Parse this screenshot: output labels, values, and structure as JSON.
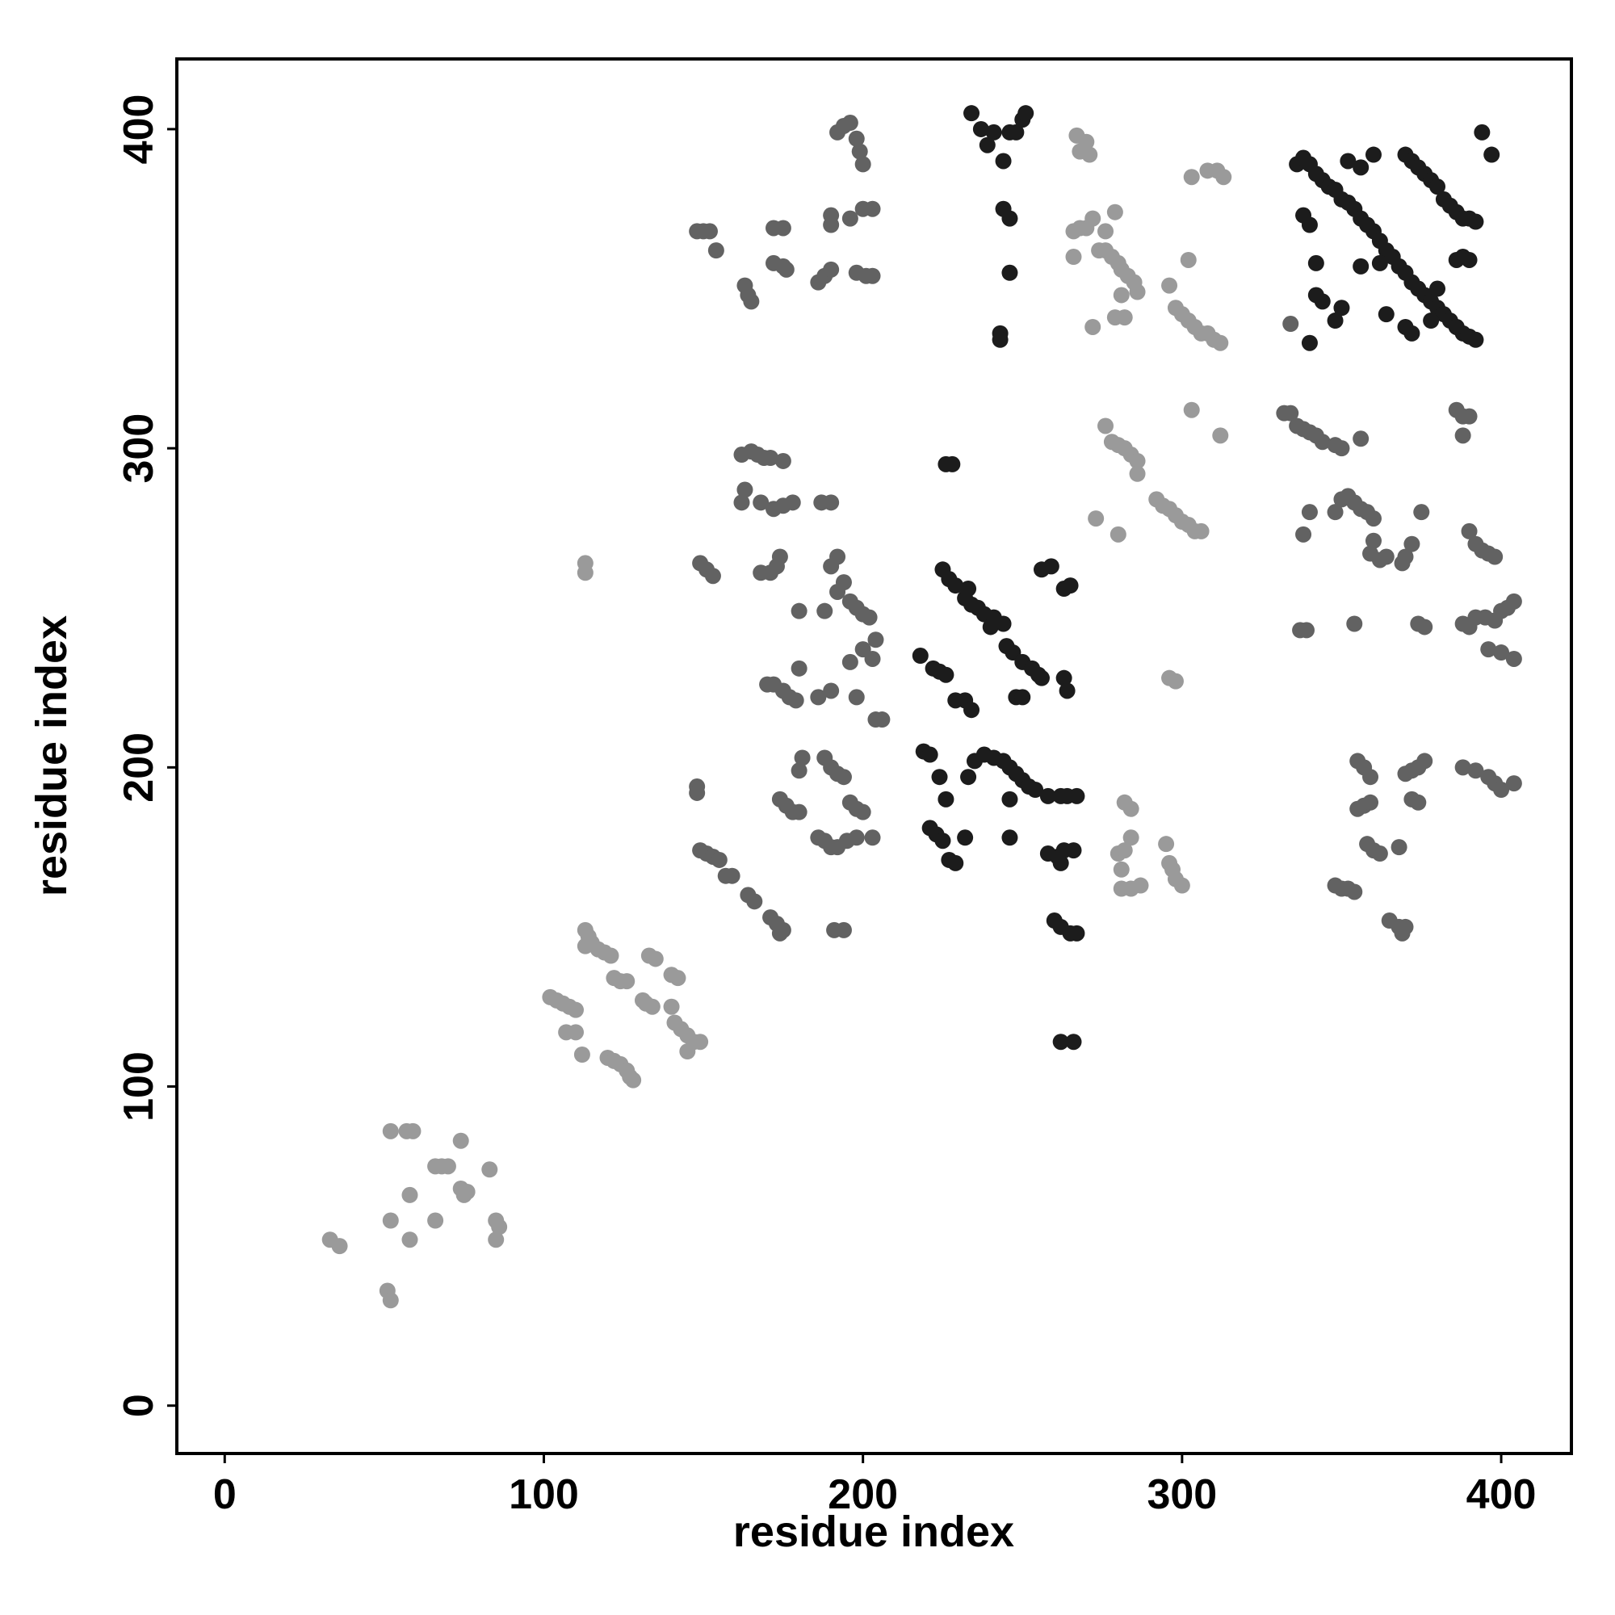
{
  "chart_data": {
    "type": "scatter",
    "x_label": "residue index",
    "y_label": "residue index",
    "xlim": [
      -15,
      422
    ],
    "ylim": [
      -15,
      422
    ],
    "xticks": [
      0,
      100,
      200,
      300,
      400
    ],
    "yticks": [
      0,
      100,
      200,
      300,
      400
    ],
    "grid": false,
    "series": [
      {
        "color": "#9a9a9a",
        "x": [
          33,
          36,
          51,
          52,
          52,
          57,
          59,
          52,
          58,
          58,
          66,
          66,
          68,
          70,
          74,
          74,
          75,
          76,
          83,
          85,
          86,
          85,
          102,
          104,
          106,
          108,
          110,
          107,
          110,
          112,
          113,
          114,
          115,
          117,
          119,
          113,
          120,
          122,
          124,
          126,
          127,
          128,
          122,
          124,
          126,
          121,
          133,
          135,
          131,
          132,
          134,
          140,
          142,
          140,
          141,
          143,
          145,
          147,
          149,
          145,
          113,
          113,
          267,
          268,
          270,
          271,
          266,
          268,
          270,
          272,
          266,
          274,
          276,
          278,
          280,
          281,
          283,
          285,
          286,
          276,
          279,
          272,
          279,
          282,
          281,
          273,
          276,
          278,
          280,
          282,
          284,
          286,
          280,
          286,
          282,
          284,
          280,
          282,
          284,
          281,
          281,
          284,
          287,
          295,
          296,
          297,
          298,
          300,
          292,
          294,
          296,
          298,
          300,
          302,
          304,
          306,
          296,
          298,
          303,
          312,
          303,
          308,
          311,
          313,
          296,
          298,
          300,
          302,
          304,
          306,
          308,
          310,
          312,
          302
        ],
        "y": [
          52,
          50,
          36,
          33,
          86,
          86,
          86,
          58,
          52,
          66,
          58,
          75,
          75,
          75,
          83,
          68,
          66,
          67,
          74,
          58,
          56,
          52,
          128,
          127,
          126,
          125,
          124,
          117,
          117,
          110,
          149,
          147,
          145,
          143,
          142,
          144,
          109,
          108,
          107,
          105,
          103,
          102,
          134,
          133,
          133,
          141,
          141,
          140,
          127,
          126,
          125,
          135,
          134,
          125,
          120,
          118,
          116,
          114,
          114,
          111,
          264,
          261,
          398,
          393,
          396,
          392,
          368,
          369,
          369,
          372,
          360,
          362,
          362,
          360,
          358,
          356,
          354,
          352,
          349,
          368,
          374,
          338,
          341,
          341,
          348,
          278,
          307,
          302,
          301,
          300,
          298,
          296,
          273,
          292,
          189,
          187,
          173,
          174,
          178,
          168,
          162,
          162,
          163,
          176,
          170,
          168,
          165,
          163,
          284,
          282,
          281,
          279,
          277,
          276,
          274,
          274,
          228,
          227,
          312,
          304,
          385,
          387,
          387,
          385,
          351,
          344,
          342,
          340,
          338,
          336,
          336,
          334,
          333,
          359
        ]
      },
      {
        "color": "#626262",
        "x": [
          148,
          148,
          149,
          151,
          153,
          155,
          157,
          159,
          164,
          166,
          171,
          173,
          175,
          174,
          149,
          151,
          153,
          148,
          150,
          152,
          154,
          163,
          164,
          165,
          172,
          175,
          172,
          176,
          175,
          162,
          165,
          167,
          169,
          171,
          175,
          162,
          163,
          168,
          172,
          175,
          178,
          168,
          171,
          173,
          174,
          170,
          172,
          175,
          177,
          179,
          180,
          180,
          174,
          176,
          178,
          180,
          180,
          181,
          186,
          188,
          190,
          192,
          188,
          190,
          192,
          194,
          186,
          190,
          188,
          192,
          194,
          196,
          198,
          200,
          202,
          196,
          198,
          190,
          192,
          190,
          187,
          186,
          188,
          190,
          190,
          190,
          192,
          194,
          196,
          198,
          199,
          200,
          196,
          200,
          203,
          198,
          201,
          203,
          200,
          203,
          204,
          204,
          206,
          196,
          198,
          200,
          198,
          203,
          195,
          191,
          194,
          332,
          334,
          336,
          338,
          340,
          342,
          344,
          348,
          350,
          356,
          334,
          337,
          339,
          338,
          340,
          348,
          350,
          352,
          354,
          356,
          358,
          360,
          360,
          359,
          362,
          364,
          354,
          348,
          350,
          352,
          354,
          355,
          357,
          359,
          355,
          357,
          359,
          358,
          360,
          362,
          365,
          368,
          370,
          369,
          368,
          370,
          372,
          374,
          376,
          372,
          374,
          369,
          370,
          372,
          375,
          374,
          376,
          386,
          388,
          390,
          388,
          390,
          392,
          394,
          396,
          398,
          388,
          390,
          392,
          395,
          398,
          400,
          402,
          404,
          396,
          400,
          404,
          388,
          392,
          396,
          398,
          400,
          404
        ],
        "y": [
          194,
          192,
          174,
          173,
          172,
          171,
          166,
          166,
          160,
          158,
          153,
          151,
          149,
          148,
          264,
          262,
          260,
          368,
          368,
          368,
          362,
          351,
          348,
          346,
          369,
          369,
          358,
          356,
          357,
          298,
          299,
          298,
          297,
          297,
          296,
          283,
          287,
          283,
          281,
          282,
          283,
          261,
          261,
          263,
          266,
          226,
          226,
          224,
          222,
          221,
          231,
          249,
          190,
          188,
          186,
          186,
          199,
          203,
          178,
          177,
          175,
          175,
          203,
          200,
          198,
          197,
          222,
          224,
          249,
          255,
          258,
          252,
          250,
          248,
          247,
          233,
          222,
          263,
          266,
          283,
          283,
          352,
          354,
          356,
          370,
          373,
          399,
          401,
          402,
          397,
          393,
          389,
          372,
          375,
          375,
          355,
          354,
          354,
          237,
          234,
          240,
          215,
          215,
          189,
          187,
          186,
          178,
          178,
          177,
          149,
          149,
          311,
          311,
          307,
          306,
          305,
          304,
          302,
          301,
          300,
          303,
          339,
          243,
          243,
          273,
          280,
          280,
          284,
          285,
          283,
          281,
          280,
          278,
          271,
          267,
          265,
          266,
          245,
          163,
          162,
          162,
          161,
          202,
          200,
          197,
          187,
          188,
          189,
          176,
          174,
          173,
          152,
          150,
          150,
          148,
          175,
          198,
          199,
          200,
          202,
          190,
          189,
          264,
          266,
          270,
          280,
          245,
          244,
          312,
          310,
          310,
          304,
          274,
          270,
          268,
          267,
          266,
          245,
          244,
          247,
          247,
          246,
          249,
          250,
          252,
          237,
          236,
          234,
          200,
          199,
          197,
          195,
          193,
          195
        ]
      },
      {
        "color": "#1c1c1c",
        "x": [
          218,
          219,
          221,
          221,
          223,
          225,
          227,
          229,
          222,
          224,
          226,
          225,
          227,
          229,
          232,
          234,
          236,
          238,
          241,
          244,
          224,
          226,
          232,
          233,
          235,
          238,
          241,
          244,
          246,
          248,
          250,
          252,
          254,
          246,
          246,
          229,
          232,
          234,
          233,
          240,
          245,
          247,
          250,
          253,
          255,
          256,
          248,
          250,
          263,
          264,
          256,
          259,
          263,
          265,
          258,
          261,
          262,
          263,
          266,
          260,
          262,
          265,
          267,
          262,
          266,
          258,
          262,
          264,
          267,
          234,
          237,
          239,
          241,
          244,
          246,
          248,
          250,
          251,
          244,
          246,
          243,
          243,
          246,
          226,
          228,
          336,
          338,
          340,
          342,
          344,
          346,
          348,
          350,
          352,
          354,
          356,
          358,
          360,
          362,
          364,
          366,
          368,
          370,
          372,
          374,
          376,
          378,
          380,
          382,
          384,
          386,
          388,
          390,
          392,
          338,
          340,
          342,
          344,
          348,
          350,
          352,
          356,
          360,
          362,
          364,
          370,
          372,
          374,
          376,
          378,
          380,
          382,
          384,
          386,
          388,
          390,
          392,
          386,
          388,
          390,
          386,
          394,
          397,
          370,
          372,
          378,
          380,
          340,
          356,
          342
        ],
        "y": [
          235,
          205,
          204,
          181,
          179,
          177,
          171,
          170,
          231,
          230,
          229,
          262,
          259,
          257,
          253,
          251,
          250,
          248,
          247,
          245,
          197,
          190,
          178,
          197,
          202,
          204,
          203,
          202,
          200,
          198,
          196,
          194,
          193,
          190,
          178,
          221,
          221,
          218,
          256,
          244,
          238,
          236,
          233,
          231,
          229,
          228,
          222,
          222,
          228,
          224,
          262,
          263,
          256,
          257,
          173,
          172,
          170,
          174,
          174,
          152,
          150,
          148,
          148,
          114,
          114,
          191,
          191,
          191,
          191,
          405,
          400,
          395,
          399,
          390,
          399,
          399,
          403,
          405,
          375,
          372,
          336,
          334,
          355,
          295,
          295,
          389,
          391,
          389,
          386,
          384,
          382,
          381,
          378,
          377,
          375,
          372,
          370,
          368,
          365,
          362,
          360,
          357,
          355,
          352,
          350,
          348,
          346,
          344,
          342,
          340,
          338,
          336,
          335,
          334,
          373,
          370,
          348,
          346,
          340,
          344,
          390,
          388,
          392,
          358,
          342,
          392,
          390,
          388,
          386,
          384,
          382,
          378,
          376,
          374,
          372,
          372,
          371,
          359,
          360,
          359,
          338,
          399,
          392,
          338,
          336,
          340,
          350,
          333,
          357,
          358
        ]
      }
    ]
  }
}
